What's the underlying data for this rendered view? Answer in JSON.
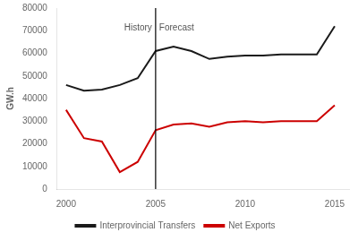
{
  "chart_data": {
    "type": "line",
    "x": [
      2000,
      2001,
      2002,
      2003,
      2004,
      2005,
      2006,
      2007,
      2008,
      2009,
      2010,
      2011,
      2012,
      2013,
      2014,
      2015
    ],
    "series": [
      {
        "name": "Interprovincial Transfers",
        "color": "#1a1a1a",
        "values": [
          46000,
          43500,
          44000,
          46000,
          49000,
          61000,
          63000,
          61000,
          57500,
          58500,
          59000,
          59000,
          59500,
          59500,
          59500,
          72000
        ]
      },
      {
        "name": "Net Exports",
        "color": "#cc0000",
        "values": [
          35000,
          22500,
          21000,
          7500,
          12000,
          26000,
          28500,
          29000,
          27500,
          29500,
          30000,
          29500,
          30000,
          30000,
          30000,
          37000
        ]
      }
    ],
    "y_label": "GW.h",
    "xlim": [
      1999.5,
      2015.8
    ],
    "xticks": [
      2000,
      2005,
      2010,
      2015
    ],
    "ylim": [
      0,
      80000
    ],
    "yticks": [
      0,
      10000,
      20000,
      30000,
      40000,
      50000,
      60000,
      70000,
      80000
    ],
    "vline": 2005,
    "annotations": [
      {
        "text": "History",
        "x": 2005,
        "y": 73000,
        "align": "right"
      },
      {
        "text": "Forecast",
        "x": 2005,
        "y": 73000,
        "align": "left"
      }
    ],
    "grid": false,
    "legend": "bottom"
  }
}
